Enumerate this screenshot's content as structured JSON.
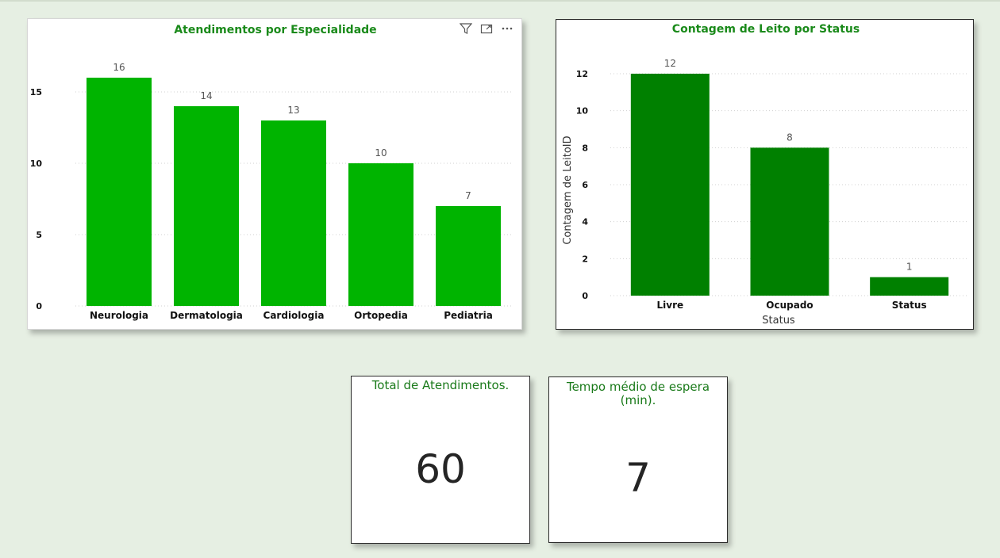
{
  "colors": {
    "bar_especialidade": "#00b400",
    "bar_leito": "#008000",
    "title": "#1a8a1a",
    "background": "#e6efe3"
  },
  "visual_header": {
    "filter_icon": "filter-icon",
    "focus_icon": "focus-mode-icon",
    "more_icon": "more-options-icon"
  },
  "chart_data": [
    {
      "type": "bar",
      "title": "Atendimentos por Especialidade",
      "categories": [
        "Neurologia",
        "Dermatologia",
        "Cardiologia",
        "Ortopedia",
        "Pediatria"
      ],
      "values": [
        16,
        14,
        13,
        10,
        7
      ],
      "yticks": [
        0,
        5,
        10,
        15
      ],
      "ylim": [
        0,
        17
      ],
      "xlabel": "",
      "ylabel": "",
      "grid": true
    },
    {
      "type": "bar",
      "title": "Contagem de Leito por Status",
      "categories": [
        "Livre",
        "Ocupado",
        "Status"
      ],
      "values": [
        12,
        8,
        1
      ],
      "yticks": [
        0,
        2,
        4,
        6,
        8,
        10,
        12
      ],
      "ylim": [
        0,
        12.6
      ],
      "xlabel": "Status",
      "ylabel": "Contagem de LeitoID",
      "grid": true
    }
  ],
  "kpis": {
    "total": {
      "title": "Total de Atendimentos.",
      "value": "60"
    },
    "tempo": {
      "title_line1": "Tempo médio de espera",
      "title_line2": "(min).",
      "value": "7"
    }
  }
}
